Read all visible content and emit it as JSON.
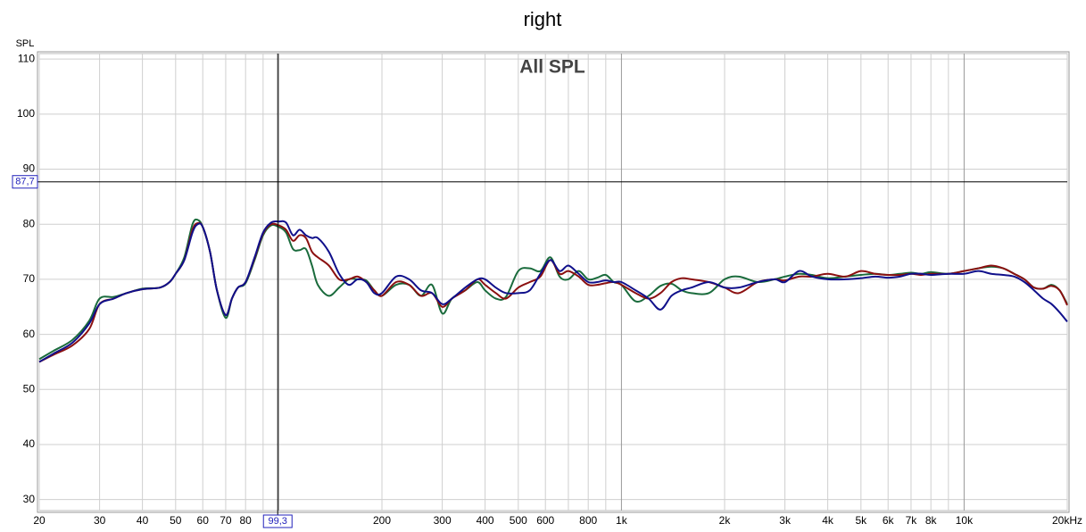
{
  "chart_data": {
    "type": "line",
    "title": "right",
    "subtitle": "All SPL",
    "y_label": "SPL",
    "xscale": "log",
    "grid": true,
    "xlim": [
      20,
      20000
    ],
    "ylim": [
      28,
      111
    ],
    "yticks": [
      30,
      40,
      50,
      60,
      70,
      80,
      90,
      100,
      110
    ],
    "xticks": [
      20,
      30,
      40,
      50,
      60,
      70,
      80,
      200,
      300,
      400,
      500,
      600,
      800,
      {
        "value": 1000,
        "label": "1k"
      },
      {
        "value": 2000,
        "label": "2k"
      },
      {
        "value": 3000,
        "label": "3k"
      },
      {
        "value": 4000,
        "label": "4k"
      },
      {
        "value": 5000,
        "label": "5k"
      },
      {
        "value": 6000,
        "label": "6k"
      },
      {
        "value": 7000,
        "label": "7k"
      },
      {
        "value": 8000,
        "label": "8k"
      },
      {
        "value": 10000,
        "label": "10k"
      },
      {
        "value": 20000,
        "label": "20kHz"
      }
    ],
    "xgrid_unlabeled": [
      90,
      100,
      700,
      900,
      9000
    ],
    "cursor": {
      "x": {
        "value": 99.3,
        "label": "99,3"
      },
      "y": {
        "value": 87.7,
        "label": "87,7"
      }
    },
    "x": [
      20,
      22,
      25,
      28,
      30,
      33,
      36,
      40,
      45,
      48,
      50,
      53,
      56,
      58,
      60,
      63,
      66,
      70,
      73,
      76,
      80,
      85,
      90,
      95,
      100,
      105,
      110,
      115,
      120,
      125,
      130,
      140,
      150,
      160,
      170,
      180,
      190,
      200,
      220,
      240,
      260,
      280,
      300,
      320,
      350,
      380,
      400,
      430,
      460,
      500,
      540,
      580,
      620,
      660,
      700,
      750,
      800,
      850,
      900,
      950,
      1000,
      1100,
      1200,
      1300,
      1400,
      1500,
      1600,
      1800,
      2000,
      2200,
      2500,
      2800,
      3000,
      3300,
      3600,
      4000,
      4500,
      5000,
      5500,
      6000,
      6500,
      7000,
      7500,
      8000,
      9000,
      10000,
      11000,
      12000,
      13000,
      14000,
      15000,
      16000,
      17000,
      18000,
      19000,
      20000
    ],
    "series": [
      {
        "color": "#1a6b3c",
        "values": [
          55.5,
          57,
          59,
          62.5,
          66.5,
          66.8,
          67.5,
          68.3,
          68.5,
          69.5,
          71,
          74,
          80,
          80.8,
          79.5,
          75,
          68,
          63,
          66.5,
          68.5,
          69.3,
          73.5,
          78,
          79.8,
          79.5,
          78.5,
          75.5,
          75.3,
          75.5,
          72.5,
          69,
          67,
          68.5,
          70,
          70,
          69.8,
          68,
          67,
          69,
          69,
          67,
          69,
          63.8,
          66.5,
          68,
          69.5,
          68,
          66.5,
          66.8,
          71.5,
          72,
          71.5,
          74,
          70.5,
          70,
          71.5,
          70,
          70.3,
          70.8,
          69.5,
          69,
          66,
          67,
          68.8,
          69.2,
          68,
          67.5,
          67.5,
          70,
          70.5,
          69.5,
          70,
          70.5,
          71,
          70.8,
          70.2,
          70.5,
          70.8,
          71,
          70.8,
          71,
          71.2,
          71,
          71.3,
          71,
          71.5,
          72,
          72.3,
          72,
          71,
          70,
          68.5,
          68.3,
          69,
          68,
          65.5
        ]
      },
      {
        "color": "#8b1010",
        "values": [
          55,
          56.3,
          58,
          61,
          65.5,
          66.5,
          67.5,
          68.2,
          68.5,
          69.5,
          71,
          73.5,
          79,
          80.2,
          79.5,
          75,
          68,
          63.5,
          66.5,
          68.5,
          69.5,
          73.8,
          78.3,
          80,
          79.8,
          79,
          77,
          78,
          77.5,
          75,
          74,
          72.5,
          70,
          70,
          70.5,
          69.5,
          68,
          67,
          69.5,
          69,
          67,
          67.5,
          65,
          66.5,
          68,
          70,
          69,
          67.5,
          66.5,
          68.5,
          69.5,
          70.5,
          73.5,
          71,
          71.5,
          70.5,
          69,
          69,
          69.3,
          69.5,
          69,
          67.5,
          66.5,
          67.5,
          69.5,
          70.2,
          70,
          69.5,
          68.5,
          67.5,
          69.5,
          70,
          69.8,
          70.5,
          70.5,
          71,
          70.5,
          71.5,
          71,
          70.8,
          70.8,
          71,
          70.8,
          71,
          71,
          71.5,
          72,
          72.5,
          72,
          71,
          70,
          68.5,
          68.3,
          68.8,
          68,
          65.3
        ]
      },
      {
        "color": "#10108b",
        "values": [
          55,
          56.5,
          58.5,
          62,
          65.5,
          66.5,
          67.5,
          68.2,
          68.5,
          69.5,
          71,
          73.5,
          78.5,
          80,
          79.5,
          75,
          68,
          63.5,
          66.5,
          68.5,
          69.5,
          74,
          78.5,
          80.3,
          80.5,
          80.3,
          78,
          79,
          78,
          77.5,
          77.5,
          75,
          71,
          69,
          70,
          69.5,
          67.5,
          67.5,
          70.5,
          70,
          68,
          67.5,
          65.5,
          66.5,
          68.5,
          70,
          70,
          68.5,
          67.5,
          67.5,
          68,
          71,
          73.5,
          71.5,
          72.5,
          71,
          69.5,
          69.5,
          69.8,
          69.5,
          69.5,
          68,
          66.5,
          64.5,
          67,
          68,
          68.5,
          69.5,
          68.5,
          68.5,
          69.5,
          70,
          69.5,
          71.5,
          70.5,
          70,
          70,
          70.2,
          70.5,
          70.3,
          70.5,
          71,
          71,
          70.8,
          71,
          71,
          71.5,
          71,
          70.8,
          70.5,
          69.5,
          68,
          66.5,
          65.5,
          64,
          62.3
        ]
      }
    ]
  }
}
